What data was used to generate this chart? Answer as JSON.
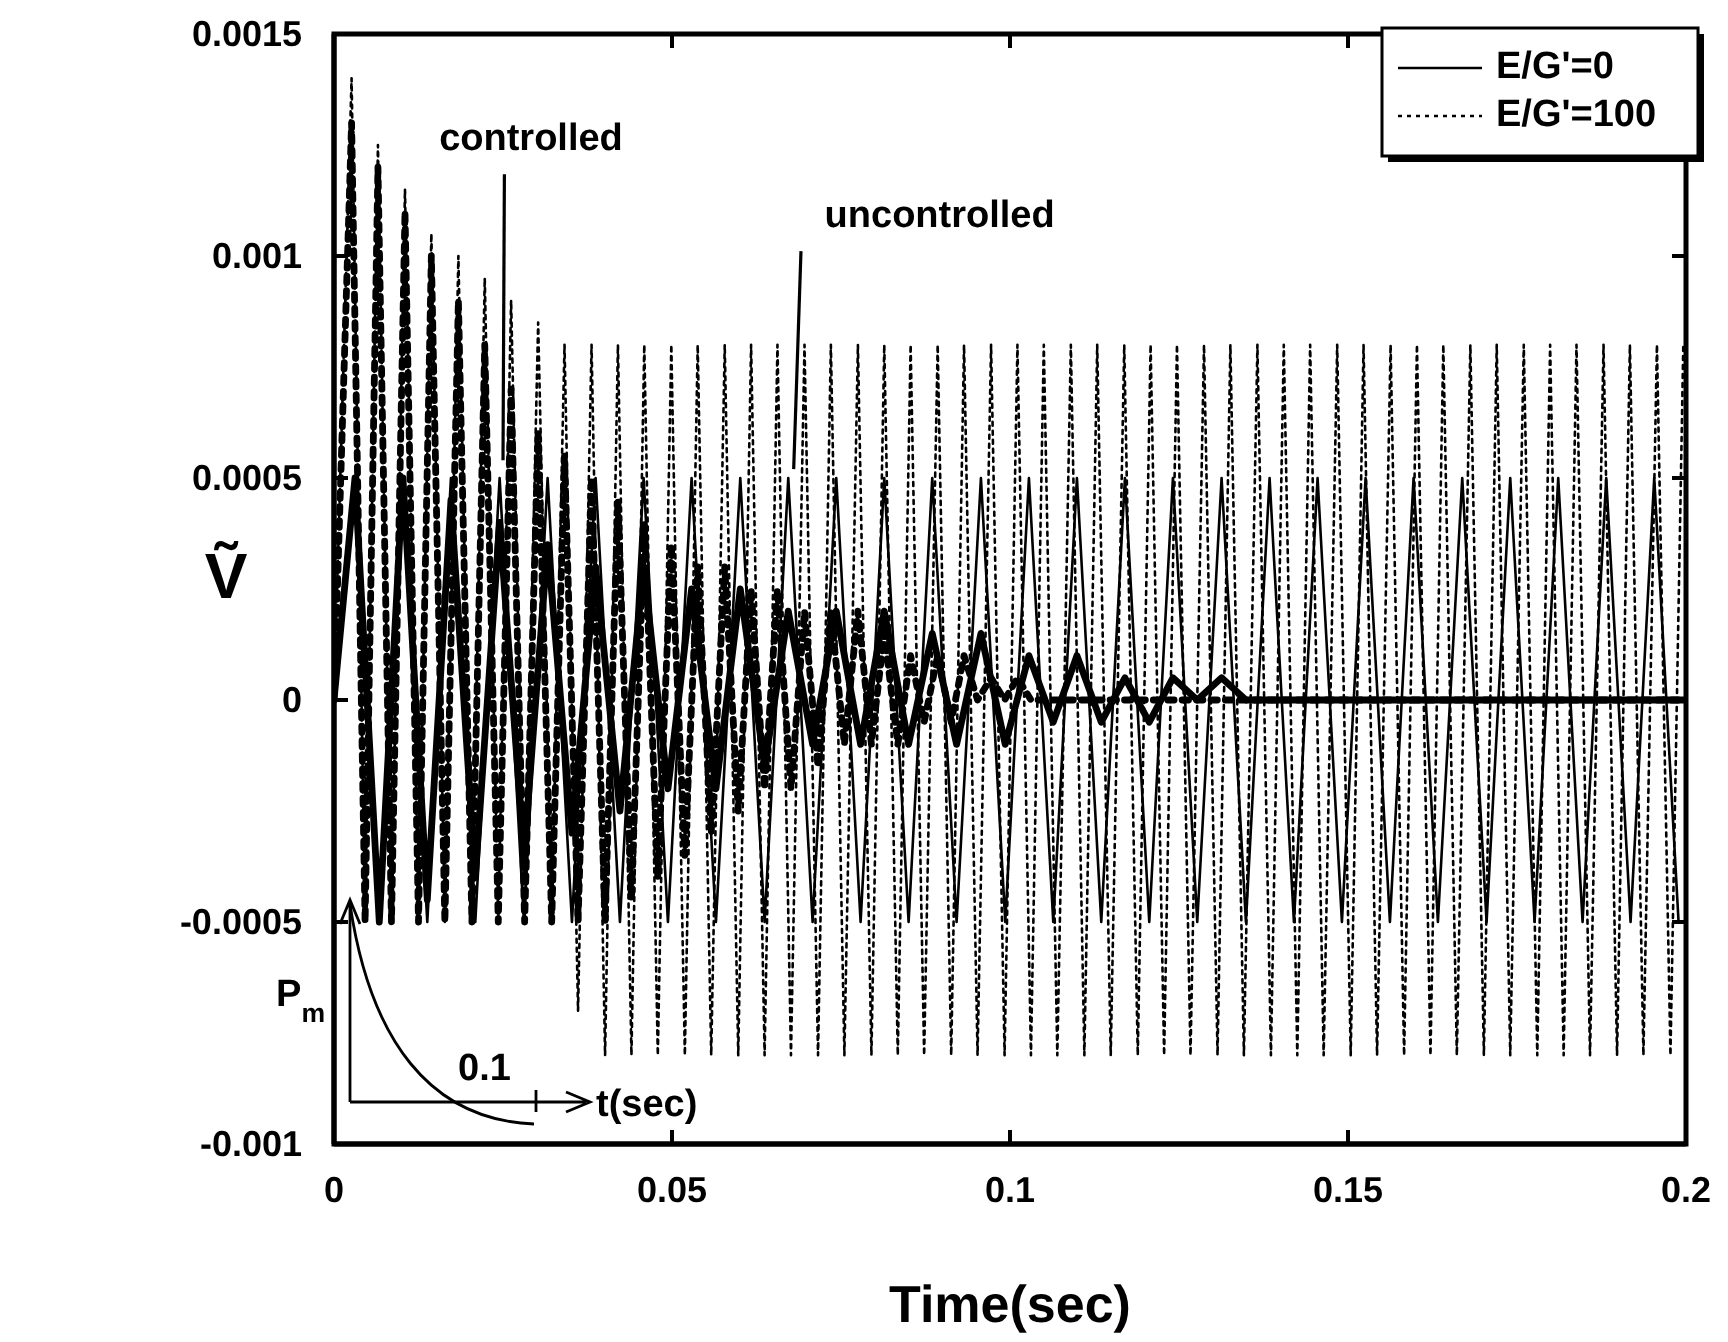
{
  "chart_data": {
    "type": "line",
    "xlabel": "Time(sec)",
    "ylabel": "Ṽ",
    "xlim": [
      0,
      0.2
    ],
    "xticks": [
      0,
      0.05,
      0.1,
      0.15,
      0.2
    ],
    "ylim": [
      -0.001,
      0.0015
    ],
    "yticks": [
      -0.001,
      -0.0005,
      0,
      0.0005,
      0.001,
      0.0015
    ],
    "grid": false,
    "legend": "top right",
    "marker": "none",
    "series": [
      {
        "name": "E/G'=0",
        "color": "#000000",
        "line_style": "solid",
        "x": [
          0,
          0.0031,
          0.0067,
          0.0102,
          0.0138,
          0.0173,
          0.0209,
          0.0245,
          0.0281,
          0.0316,
          0.0352,
          0.0387,
          0.0423,
          0.0458,
          0.0494,
          0.0529,
          0.0565,
          0.0601,
          0.0637,
          0.0672,
          0.0708,
          0.0743,
          0.0779,
          0.0814,
          0.085,
          0.0885,
          0.0921,
          0.0957,
          0.0993,
          0.1028,
          0.1064,
          0.1099,
          0.1135,
          0.117,
          0.1206,
          0.1241,
          0.1277,
          0.1313,
          0.1349,
          0.1384,
          0.142,
          0.1455,
          0.1491,
          0.1526,
          0.1562,
          0.1597,
          0.1633,
          0.1669,
          0.1705,
          0.174,
          0.1776,
          0.1811,
          0.1847,
          0.1882,
          0.1918,
          0.1953,
          0.1989
        ],
        "values": [
          0,
          0.0005,
          -0.0005,
          0.0005,
          -0.0005,
          0.0005,
          -0.0005,
          0.0005,
          -0.0005,
          0.0005,
          -0.0005,
          0.0005,
          -0.0005,
          0.0005,
          -0.0005,
          0.0005,
          -0.0005,
          0.0005,
          -0.0005,
          0.0005,
          -0.0005,
          0.0005,
          -0.0005,
          0.0005,
          -0.0005,
          0.0005,
          -0.0005,
          0.0005,
          -0.0005,
          0.0005,
          -0.0005,
          0.0005,
          -0.0005,
          0.0005,
          -0.0005,
          0.0005,
          -0.0005,
          0.0005,
          -0.0005,
          0.0005,
          -0.0005,
          0.0005,
          -0.0005,
          0.0005,
          -0.0005,
          0.0005,
          -0.0005,
          0.0005,
          -0.0005,
          0.0005,
          -0.0005,
          0.0005,
          -0.0005,
          0.0005,
          -0.0005,
          0.0005,
          -0.0005
        ]
      },
      {
        "name": "E/G'=100",
        "color": "#000000",
        "line_style": "dotted",
        "x": [
          0,
          0.0026,
          0.0046,
          0.0065,
          0.0085,
          0.0105,
          0.0125,
          0.0144,
          0.0164,
          0.0184,
          0.0204,
          0.0223,
          0.0243,
          0.0262,
          0.0282,
          0.0302,
          0.0322,
          0.0341,
          0.0361,
          0.0381,
          0.0401,
          0.042,
          0.044,
          0.0459,
          0.0479,
          0.0499,
          0.0519,
          0.0538,
          0.0558,
          0.0578,
          0.0598,
          0.0617,
          0.0637,
          0.0656,
          0.0676,
          0.0696,
          0.0716,
          0.0735,
          0.0755,
          0.0775,
          0.0795,
          0.0814,
          0.0834,
          0.0853,
          0.0873,
          0.0893,
          0.0913,
          0.0932,
          0.0952,
          0.0972,
          0.0992,
          0.1011,
          0.1031,
          0.105,
          0.107,
          0.109,
          0.111,
          0.1129,
          0.1149,
          0.1169,
          0.1189,
          0.1208,
          0.1228,
          0.1247,
          0.1267,
          0.1287,
          0.1307,
          0.1326,
          0.1346,
          0.1366,
          0.1386,
          0.1405,
          0.1425,
          0.1444,
          0.1464,
          0.1484,
          0.1504,
          0.1523,
          0.1543,
          0.1563,
          0.1583,
          0.1602,
          0.1622,
          0.1641,
          0.1661,
          0.1681,
          0.1701,
          0.172,
          0.174,
          0.176,
          0.178,
          0.1799,
          0.1819,
          0.1838,
          0.1858,
          0.1878,
          0.1898,
          0.1917,
          0.1937,
          0.1957,
          0.1977,
          0.1996
        ],
        "values": [
          0,
          0.0014,
          -0.0005,
          0.00125,
          -0.0005,
          0.00115,
          -0.0005,
          0.00105,
          -0.0005,
          0.001,
          -0.0005,
          0.00095,
          -0.0005,
          0.0009,
          -0.0005,
          0.00085,
          -0.0005,
          0.0008,
          -0.0007,
          0.0008,
          -0.0008,
          0.0008,
          -0.0008,
          0.0008,
          -0.0008,
          0.0008,
          -0.0008,
          0.0008,
          -0.0008,
          0.0008,
          -0.0008,
          0.0008,
          -0.0008,
          0.0008,
          -0.0008,
          0.0008,
          -0.0008,
          0.0008,
          -0.0008,
          0.0008,
          -0.0008,
          0.0008,
          -0.0008,
          0.0008,
          -0.0008,
          0.0008,
          -0.0008,
          0.0008,
          -0.0008,
          0.0008,
          -0.0008,
          0.0008,
          -0.0008,
          0.0008,
          -0.0008,
          0.0008,
          -0.0008,
          0.0008,
          -0.0008,
          0.0008,
          -0.0008,
          0.0008,
          -0.0008,
          0.0008,
          -0.0008,
          0.0008,
          -0.0008,
          0.0008,
          -0.0008,
          0.0008,
          -0.0008,
          0.0008,
          -0.0008,
          0.0008,
          -0.0008,
          0.0008,
          -0.0008,
          0.0008,
          -0.0008,
          0.0008,
          -0.0008,
          0.0008,
          -0.0008,
          0.0008,
          -0.0008,
          0.0008,
          -0.0008,
          0.0008,
          -0.0008,
          0.0008,
          -0.0008,
          0.0008,
          -0.0008,
          0.0008,
          -0.0008,
          0.0008,
          -0.0008,
          0.0008,
          -0.0008,
          0.0008,
          -0.0008,
          0.0008
        ]
      },
      {
        "color": "#000000",
        "line_style": "solid",
        "x": [
          0,
          0.0031,
          0.0067,
          0.0102,
          0.0138,
          0.0173,
          0.0209,
          0.0245,
          0.0281,
          0.0316,
          0.0352,
          0.0387,
          0.0423,
          0.0458,
          0.0494,
          0.0529,
          0.0565,
          0.0601,
          0.0637,
          0.0672,
          0.0708,
          0.0743,
          0.0779,
          0.0814,
          0.085,
          0.0885,
          0.0921,
          0.0957,
          0.0993,
          0.1028,
          0.1064,
          0.1099,
          0.1135,
          0.117,
          0.1206,
          0.1241,
          0.1277,
          0.1313,
          0.1349,
          0.1384,
          0.142,
          0.1455,
          0.2
        ],
        "values": [
          0,
          0.0005,
          -0.0005,
          0.0005,
          -0.00045,
          0.00045,
          -0.0004,
          0.0004,
          -0.00035,
          0.00035,
          -0.0003,
          0.0003,
          -0.00025,
          0.0003,
          -0.0002,
          0.00025,
          -0.0002,
          0.00025,
          -0.00015,
          0.0002,
          -0.0001,
          0.0002,
          -0.0001,
          0.0002,
          -0.0001,
          0.00015,
          -0.0001,
          0.00015,
          -0.0001,
          0.0001,
          -5e-05,
          0.0001,
          -5e-05,
          5e-05,
          -5e-05,
          5e-05,
          0,
          5e-05,
          0,
          0,
          0,
          0,
          0
        ]
      },
      {
        "color": "#000000",
        "line_style": "dotted",
        "x": [
          0,
          0.0026,
          0.0046,
          0.0065,
          0.0085,
          0.0105,
          0.0125,
          0.0144,
          0.0164,
          0.0184,
          0.0204,
          0.0223,
          0.0243,
          0.0262,
          0.0282,
          0.0302,
          0.0322,
          0.0341,
          0.0361,
          0.0381,
          0.0401,
          0.042,
          0.044,
          0.0459,
          0.0479,
          0.0499,
          0.0519,
          0.0538,
          0.0558,
          0.0578,
          0.0598,
          0.0617,
          0.0637,
          0.0656,
          0.0676,
          0.0696,
          0.0716,
          0.0735,
          0.0755,
          0.0775,
          0.0795,
          0.0814,
          0.0834,
          0.0853,
          0.0873,
          0.0893,
          0.0913,
          0.0932,
          0.0952,
          0.0972,
          0.0992,
          0.1011,
          0.1031,
          0.2
        ],
        "values": [
          0,
          0.0013,
          -0.0005,
          0.0012,
          -0.0005,
          0.0011,
          -0.0005,
          0.001,
          -0.0005,
          0.0009,
          -0.0005,
          0.0008,
          -0.0005,
          0.0007,
          -0.0005,
          0.0006,
          -0.0005,
          0.00055,
          -0.0005,
          0.0005,
          -0.0005,
          0.00045,
          -0.00045,
          0.0004,
          -0.0004,
          0.00035,
          -0.00035,
          0.0003,
          -0.0003,
          0.0003,
          -0.00025,
          0.00025,
          -0.0002,
          0.00025,
          -0.0002,
          0.0002,
          -0.00015,
          0.0002,
          -0.0001,
          0.0002,
          -0.0001,
          0.00015,
          -0.0001,
          0.0001,
          -5e-05,
          0.0001,
          -5e-05,
          0.0001,
          0,
          5e-05,
          0,
          5e-05,
          0,
          0
        ]
      }
    ],
    "annotations": [
      {
        "text": "controlled",
        "x": 0.025,
        "y": 0.00054
      },
      {
        "text": "uncontrolled",
        "x": 0.068,
        "y": 0.00052
      },
      "P$_{m}$",
      "0.1",
      "t(sec)"
    ]
  }
}
